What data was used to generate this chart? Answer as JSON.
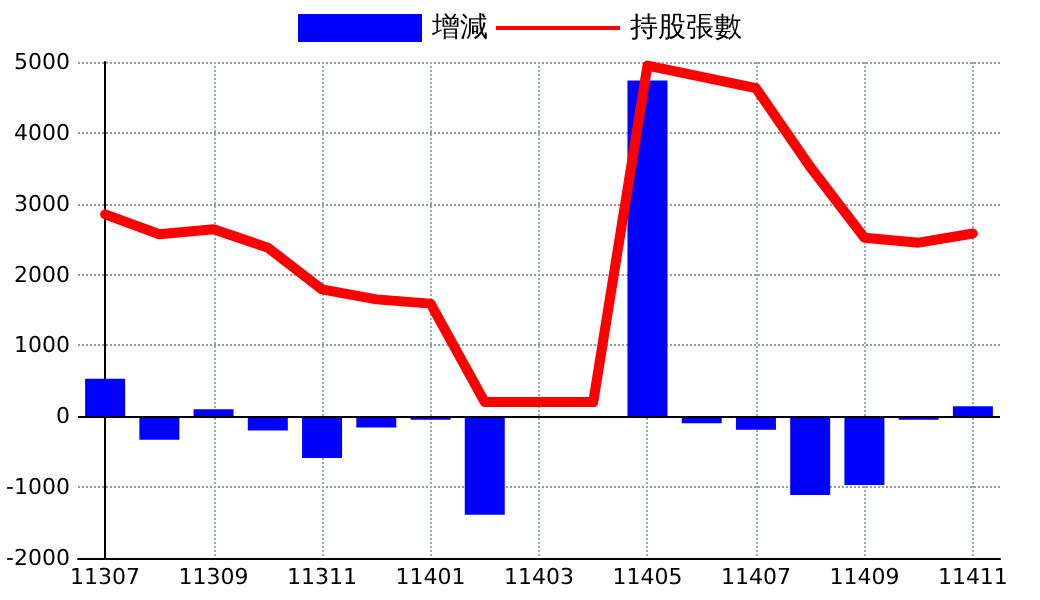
{
  "chart_data": {
    "type": "bar",
    "categories": [
      "11307",
      null,
      "11309",
      null,
      "11311",
      null,
      "11401",
      null,
      "11403",
      null,
      "11405",
      null,
      "11407",
      null,
      "11409",
      null,
      "11411"
    ],
    "series": [
      {
        "name": "增減",
        "color": "#0000ff",
        "values": [
          530,
          -330,
          100,
          -200,
          -590,
          -160,
          -50,
          -1390,
          null,
          null,
          4740,
          -100,
          -190,
          -1110,
          -970,
          -50,
          140
        ]
      },
      {
        "name": "持股張數",
        "type": "line",
        "color": "#ff0000",
        "values": [
          2850,
          2570,
          2640,
          2380,
          1790,
          1650,
          1590,
          200,
          200,
          200,
          4950,
          4790,
          4630,
          3520,
          2520,
          2450,
          2580
        ]
      }
    ],
    "ylim": [
      -2000,
      5000
    ],
    "yticks": [
      -2000,
      -1000,
      0,
      1000,
      2000,
      3000,
      4000,
      5000
    ],
    "grid": true,
    "legend": "top",
    "marker": "none",
    "line_style": "solid"
  }
}
